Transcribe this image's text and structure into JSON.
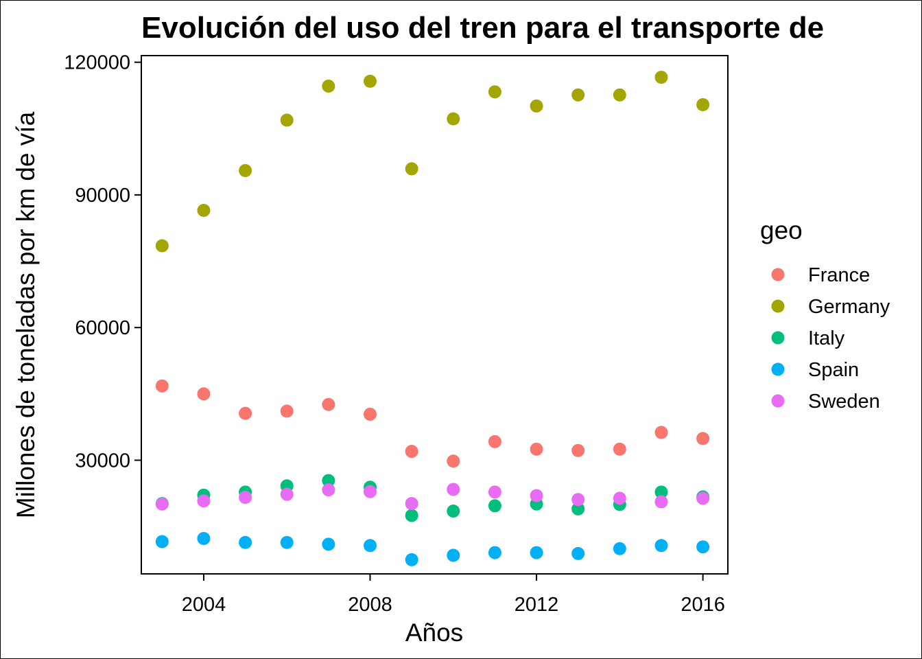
{
  "chart_data": {
    "type": "scatter",
    "title": "Evolución del uso del tren para el transporte de",
    "xlabel": "Años",
    "ylabel": "Millones de toneladas por km de vía",
    "xlim": [
      2002.5,
      2016.6
    ],
    "ylim": [
      4300,
      121500
    ],
    "x_ticks": [
      2004,
      2008,
      2012,
      2016
    ],
    "y_ticks": [
      30000,
      60000,
      90000,
      120000
    ],
    "grid": false,
    "legend": {
      "title": "geo",
      "placement": "right"
    },
    "x": [
      2003,
      2004,
      2005,
      2006,
      2007,
      2008,
      2009,
      2010,
      2011,
      2012,
      2013,
      2014,
      2015,
      2016
    ],
    "series": [
      {
        "name": "France",
        "color": "#F8766D",
        "values": [
          46800,
          45000,
          40600,
          41100,
          42600,
          40400,
          32000,
          29800,
          34200,
          32500,
          32200,
          32500,
          36300,
          34900
        ]
      },
      {
        "name": "Germany",
        "color": "#A3A500",
        "values": [
          78500,
          86500,
          95500,
          106900,
          114600,
          115700,
          95900,
          107200,
          113300,
          110100,
          112600,
          112600,
          116600,
          110400
        ]
      },
      {
        "name": "Italy",
        "color": "#00BF7D",
        "values": [
          20200,
          22100,
          22800,
          24200,
          25400,
          23900,
          17500,
          18500,
          19700,
          20100,
          19000,
          20000,
          22800,
          21700
        ]
      },
      {
        "name": "Spain",
        "color": "#00B0F6",
        "values": [
          11600,
          12300,
          11400,
          11400,
          11000,
          10700,
          7500,
          8500,
          9100,
          9100,
          8900,
          10000,
          10700,
          10400
        ]
      },
      {
        "name": "Sweden",
        "color": "#E76BF3",
        "values": [
          20100,
          20800,
          21600,
          22300,
          23300,
          22900,
          20200,
          23400,
          22800,
          22000,
          21100,
          21400,
          20600,
          21400
        ]
      }
    ]
  }
}
